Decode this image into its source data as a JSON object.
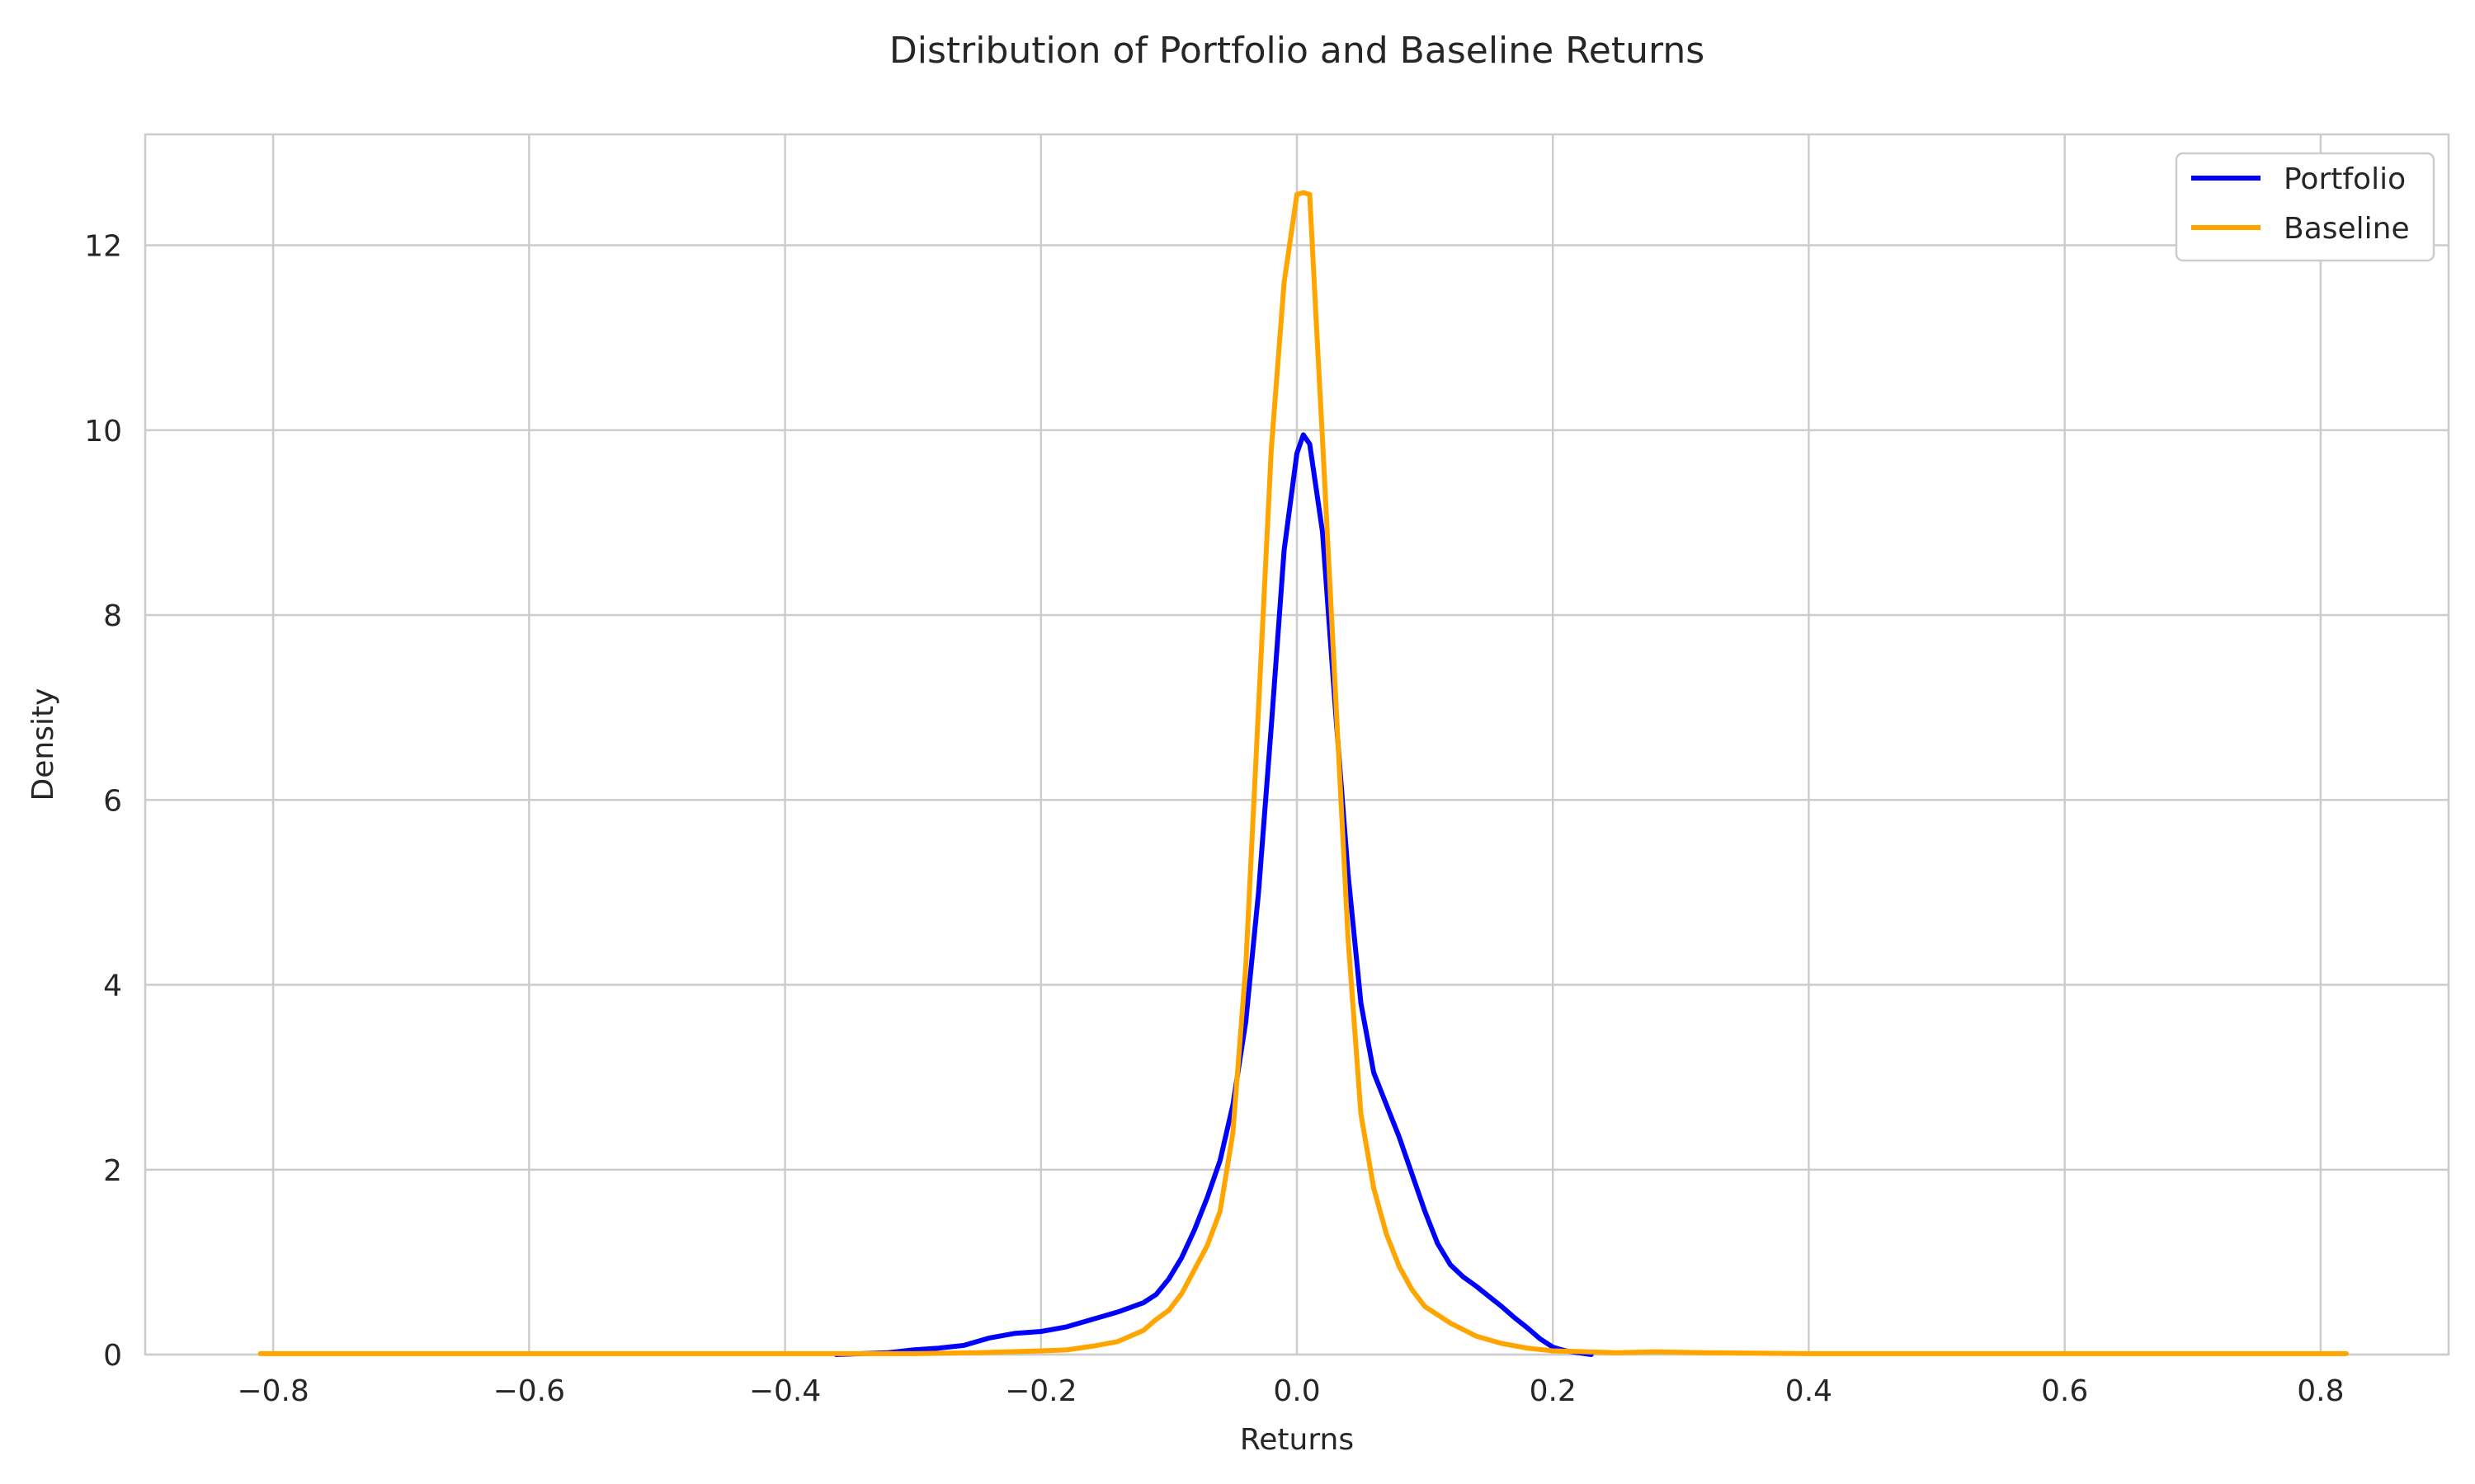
{
  "chart_data": {
    "type": "line",
    "title": "Distribution of Portfolio and Baseline Returns",
    "xlabel": "Returns",
    "ylabel": "Density",
    "xlim": [
      -0.9,
      0.9
    ],
    "ylim": [
      0,
      13.2
    ],
    "x_ticks": [
      -0.8,
      -0.6,
      -0.4,
      -0.2,
      0.0,
      0.2,
      0.4,
      0.6,
      0.8
    ],
    "x_tick_labels": [
      "−0.8",
      "−0.6",
      "−0.4",
      "−0.2",
      "0.0",
      "0.2",
      "0.4",
      "0.6",
      "0.8"
    ],
    "y_ticks": [
      0,
      2,
      4,
      6,
      8,
      10,
      12
    ],
    "y_tick_labels": [
      "0",
      "2",
      "4",
      "6",
      "8",
      "10",
      "12"
    ],
    "grid": true,
    "legend_position": "top-right",
    "series": [
      {
        "name": "Portfolio",
        "color": "#0000ff",
        "points": [
          [
            -0.36,
            0.0
          ],
          [
            -0.34,
            0.01
          ],
          [
            -0.32,
            0.02
          ],
          [
            -0.3,
            0.05
          ],
          [
            -0.28,
            0.07
          ],
          [
            -0.26,
            0.1
          ],
          [
            -0.24,
            0.18
          ],
          [
            -0.22,
            0.23
          ],
          [
            -0.2,
            0.25
          ],
          [
            -0.18,
            0.3
          ],
          [
            -0.16,
            0.38
          ],
          [
            -0.14,
            0.46
          ],
          [
            -0.12,
            0.56
          ],
          [
            -0.11,
            0.65
          ],
          [
            -0.1,
            0.82
          ],
          [
            -0.09,
            1.05
          ],
          [
            -0.08,
            1.35
          ],
          [
            -0.07,
            1.7
          ],
          [
            -0.06,
            2.1
          ],
          [
            -0.05,
            2.7
          ],
          [
            -0.04,
            3.6
          ],
          [
            -0.03,
            5.0
          ],
          [
            -0.02,
            6.8
          ],
          [
            -0.01,
            8.7
          ],
          [
            0.0,
            9.75
          ],
          [
            0.005,
            9.95
          ],
          [
            0.01,
            9.85
          ],
          [
            0.02,
            8.9
          ],
          [
            0.03,
            7.0
          ],
          [
            0.04,
            5.2
          ],
          [
            0.05,
            3.8
          ],
          [
            0.06,
            3.05
          ],
          [
            0.07,
            2.7
          ],
          [
            0.08,
            2.35
          ],
          [
            0.09,
            1.95
          ],
          [
            0.1,
            1.55
          ],
          [
            0.11,
            1.2
          ],
          [
            0.12,
            0.97
          ],
          [
            0.13,
            0.84
          ],
          [
            0.14,
            0.74
          ],
          [
            0.15,
            0.63
          ],
          [
            0.16,
            0.52
          ],
          [
            0.17,
            0.4
          ],
          [
            0.18,
            0.29
          ],
          [
            0.19,
            0.17
          ],
          [
            0.2,
            0.08
          ],
          [
            0.21,
            0.04
          ],
          [
            0.23,
            0.0
          ]
        ]
      },
      {
        "name": "Baseline",
        "color": "#ffa500",
        "points": [
          [
            -0.81,
            0.01
          ],
          [
            -0.6,
            0.01
          ],
          [
            -0.4,
            0.01
          ],
          [
            -0.3,
            0.01
          ],
          [
            -0.25,
            0.02
          ],
          [
            -0.2,
            0.04
          ],
          [
            -0.18,
            0.05
          ],
          [
            -0.16,
            0.09
          ],
          [
            -0.14,
            0.14
          ],
          [
            -0.12,
            0.26
          ],
          [
            -0.11,
            0.38
          ],
          [
            -0.1,
            0.48
          ],
          [
            -0.09,
            0.66
          ],
          [
            -0.08,
            0.92
          ],
          [
            -0.07,
            1.18
          ],
          [
            -0.06,
            1.55
          ],
          [
            -0.05,
            2.4
          ],
          [
            -0.04,
            4.2
          ],
          [
            -0.03,
            7.0
          ],
          [
            -0.02,
            9.8
          ],
          [
            -0.01,
            11.6
          ],
          [
            0.0,
            12.55
          ],
          [
            0.005,
            12.57
          ],
          [
            0.01,
            12.55
          ],
          [
            0.015,
            11.2
          ],
          [
            0.02,
            9.9
          ],
          [
            0.03,
            7.2
          ],
          [
            0.04,
            4.5
          ],
          [
            0.05,
            2.6
          ],
          [
            0.06,
            1.8
          ],
          [
            0.07,
            1.3
          ],
          [
            0.08,
            0.95
          ],
          [
            0.09,
            0.7
          ],
          [
            0.1,
            0.52
          ],
          [
            0.12,
            0.34
          ],
          [
            0.14,
            0.2
          ],
          [
            0.16,
            0.12
          ],
          [
            0.18,
            0.07
          ],
          [
            0.2,
            0.04
          ],
          [
            0.25,
            0.02
          ],
          [
            0.28,
            0.03
          ],
          [
            0.32,
            0.02
          ],
          [
            0.4,
            0.01
          ],
          [
            0.6,
            0.01
          ],
          [
            0.82,
            0.01
          ]
        ]
      }
    ]
  }
}
